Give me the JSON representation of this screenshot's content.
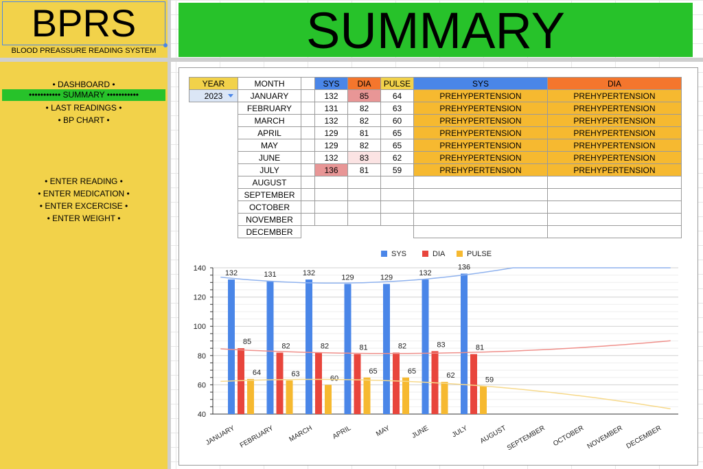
{
  "app": {
    "logo": "BPRS",
    "subtitle": "BLOOD PREASSURE READING SYSTEM",
    "banner": "SUMMARY"
  },
  "nav": {
    "items": [
      "• DASHBOARD •",
      "••••••••••• SUMMARY •••••••••••",
      "• LAST READINGS •",
      "• BP CHART •",
      "• ENTER READING •",
      "• ENTER MEDICATION •",
      "• ENTER EXCERCISE •",
      "• ENTER WEIGHT •"
    ]
  },
  "table": {
    "headers": {
      "year": "YEAR",
      "month": "MONTH",
      "sys": "SYS",
      "dia": "DIA",
      "pulse": "PULSE",
      "sys_status": "SYS",
      "dia_status": "DIA"
    },
    "year_value": "2023",
    "rows": [
      {
        "month": "JANUARY",
        "sys": "132",
        "dia": "85",
        "pulse": "64",
        "sys_status": "PREHYPERTENSION",
        "dia_status": "PREHYPERTENSION"
      },
      {
        "month": "FEBRUARY",
        "sys": "131",
        "dia": "82",
        "pulse": "63",
        "sys_status": "PREHYPERTENSION",
        "dia_status": "PREHYPERTENSION"
      },
      {
        "month": "MARCH",
        "sys": "132",
        "dia": "82",
        "pulse": "60",
        "sys_status": "PREHYPERTENSION",
        "dia_status": "PREHYPERTENSION"
      },
      {
        "month": "APRIL",
        "sys": "129",
        "dia": "81",
        "pulse": "65",
        "sys_status": "PREHYPERTENSION",
        "dia_status": "PREHYPERTENSION"
      },
      {
        "month": "MAY",
        "sys": "129",
        "dia": "82",
        "pulse": "65",
        "sys_status": "PREHYPERTENSION",
        "dia_status": "PREHYPERTENSION"
      },
      {
        "month": "JUNE",
        "sys": "132",
        "dia": "83",
        "pulse": "62",
        "sys_status": "PREHYPERTENSION",
        "dia_status": "PREHYPERTENSION"
      },
      {
        "month": "JULY",
        "sys": "136",
        "dia": "81",
        "pulse": "59",
        "sys_status": "PREHYPERTENSION",
        "dia_status": "PREHYPERTENSION"
      },
      {
        "month": "AUGUST",
        "sys": "",
        "dia": "",
        "pulse": "",
        "sys_status": "",
        "dia_status": ""
      },
      {
        "month": "SEPTEMBER",
        "sys": "",
        "dia": "",
        "pulse": "",
        "sys_status": "",
        "dia_status": ""
      },
      {
        "month": "OCTOBER",
        "sys": "",
        "dia": "",
        "pulse": "",
        "sys_status": "",
        "dia_status": ""
      },
      {
        "month": "NOVEMBER",
        "sys": "",
        "dia": "",
        "pulse": "",
        "sys_status": "",
        "dia_status": ""
      },
      {
        "month": "DECEMBER",
        "sys": "",
        "dia": "",
        "pulse": "",
        "sys_status": "",
        "dia_status": ""
      }
    ]
  },
  "colors": {
    "sys": "#4a86e8",
    "dia": "#e8453c",
    "pulse": "#f6b930",
    "status_fill": "#f6b930",
    "banner_green": "#27c22a",
    "sidebar_yellow": "#f2d24a"
  },
  "chart_data": {
    "type": "bar",
    "categories": [
      "JANUARY",
      "FEBRUARY",
      "MARCH",
      "APRIL",
      "MAY",
      "JUNE",
      "JULY",
      "AUGUST",
      "SEPTEMBER",
      "OCTOBER",
      "NOVEMBER",
      "DECEMBER"
    ],
    "series": [
      {
        "name": "SYS",
        "values": [
          132,
          131,
          132,
          129,
          129,
          132,
          136,
          null,
          null,
          null,
          null,
          null
        ]
      },
      {
        "name": "DIA",
        "values": [
          85,
          82,
          82,
          81,
          82,
          83,
          81,
          null,
          null,
          null,
          null,
          null
        ]
      },
      {
        "name": "PULSE",
        "values": [
          64,
          63,
          60,
          65,
          65,
          62,
          59,
          null,
          null,
          null,
          null,
          null
        ]
      }
    ],
    "yticks": [
      "140",
      "120",
      "100",
      "80",
      "60",
      "40"
    ],
    "ylim": [
      40,
      140
    ],
    "legend_position": "top",
    "trendlines": true,
    "grid": true
  }
}
